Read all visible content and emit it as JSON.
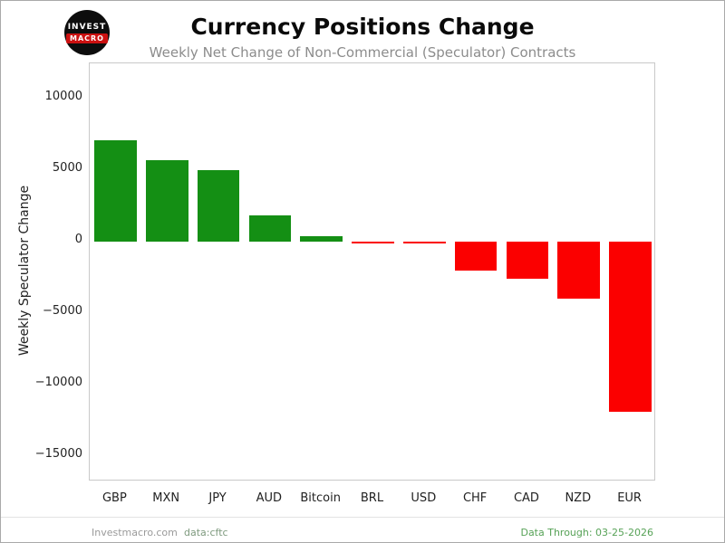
{
  "header": {
    "logo_top": "INVEST",
    "logo_bottom": "MACRO",
    "title": "Currency Positions Change",
    "subtitle": "Weekly Net Change of Non-Commercial (Speculator) Contracts"
  },
  "chart_data": {
    "type": "bar",
    "title": "Currency Positions Change",
    "subtitle": "Weekly Net Change of Non-Commercial (Speculator) Contracts",
    "categories": [
      "GBP",
      "MXN",
      "JPY",
      "AUD",
      "Bitcoin",
      "BRL",
      "USD",
      "CHF",
      "CAD",
      "NZD",
      "EUR"
    ],
    "values": [
      7100,
      5700,
      5000,
      1850,
      400,
      -120,
      -150,
      -2000,
      -2600,
      -4000,
      -11900
    ],
    "xlabel": "",
    "ylabel": "Weekly Speculator Change",
    "ylim": [
      -16800,
      12500
    ],
    "yticks": [
      10000,
      5000,
      0,
      -5000,
      -10000,
      -15000
    ],
    "grid": false,
    "legend": "none",
    "positive_color": "#148f14",
    "negative_color": "#fb0000"
  },
  "footer": {
    "site": "Investmacro.com",
    "source": "data:cftc",
    "data_through": "Data Through: 03-25-2026"
  }
}
